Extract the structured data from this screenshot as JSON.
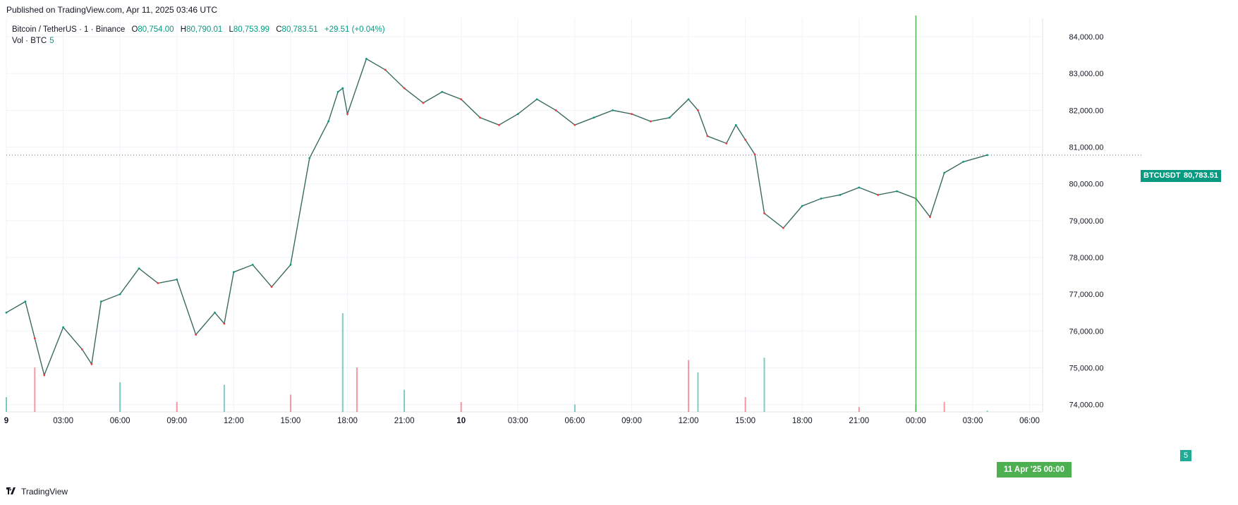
{
  "header": {
    "published": "Published on TradingView.com, Apr 11, 2025 03:46 UTC"
  },
  "legend": {
    "symbol": "Bitcoin / TetherUS · 1 · Binance",
    "open_label": "O",
    "open": "80,754.00",
    "high_label": "H",
    "high": "80,790.01",
    "low_label": "L",
    "low": "80,753.99",
    "close_label": "C",
    "close": "80,783.51",
    "change": "+29.51 (+0.04%)",
    "vol_label": "Vol · BTC",
    "vol_value": "5"
  },
  "price_tags": {
    "symbol": "BTCUSDT",
    "price": "80,783.51"
  },
  "crosshair_label": "11 Apr '25   00:00",
  "footer": {
    "brand": "TradingView",
    "logo_icon": "tradingview-logo-icon"
  },
  "colors": {
    "up": "#089981",
    "down": "#f23645",
    "crosshair": "#4caf50",
    "grid": "#f0f3fa"
  },
  "chart_data": {
    "type": "line",
    "title": "Bitcoin / TetherUS · 1 · Binance",
    "xlabel": "",
    "ylabel": "",
    "x_ticks": [
      "9",
      "03:00",
      "06:00",
      "09:00",
      "12:00",
      "15:00",
      "18:00",
      "21:00",
      "10",
      "03:00",
      "06:00",
      "09:00",
      "12:00",
      "15:00",
      "18:00",
      "21:00",
      "00:00",
      "03:00",
      "06:00"
    ],
    "y_ticks": [
      "74,000.00",
      "75,000.00",
      "76,000.00",
      "77,000.00",
      "78,000.00",
      "79,000.00",
      "80,000.00",
      "81,000.00",
      "82,000.00",
      "83,000.00",
      "84,000.00"
    ],
    "ylim": [
      73800,
      84500
    ],
    "grid": true,
    "last_price": 80783.51,
    "series": [
      {
        "name": "BTCUSDT",
        "x": [
          "9 00:00",
          "01:00",
          "01:30",
          "02:00",
          "03:00",
          "04:00",
          "04:30",
          "05:00",
          "06:00",
          "07:00",
          "08:00",
          "09:00",
          "10:00",
          "11:00",
          "11:30",
          "12:00",
          "13:00",
          "14:00",
          "15:00",
          "16:00",
          "17:00",
          "17:30",
          "17:45",
          "18:00",
          "19:00",
          "20:00",
          "21:00",
          "22:00",
          "23:00",
          "10 00:00",
          "01:00",
          "02:00",
          "03:00",
          "04:00",
          "05:00",
          "06:00",
          "07:00",
          "08:00",
          "09:00",
          "10:00",
          "11:00",
          "12:00",
          "12:30",
          "13:00",
          "14:00",
          "14:30",
          "15:00",
          "15:30",
          "16:00",
          "17:00",
          "18:00",
          "19:00",
          "20:00",
          "21:00",
          "22:00",
          "23:00",
          "11 00:00",
          "00:45",
          "01:30",
          "02:30",
          "03:46"
        ],
        "values": [
          76500,
          76800,
          75800,
          74800,
          76100,
          75500,
          75100,
          76800,
          77000,
          77700,
          77300,
          77400,
          75900,
          76500,
          76200,
          77600,
          77800,
          77200,
          77800,
          80700,
          81700,
          82500,
          82600,
          81900,
          83400,
          83100,
          82600,
          82200,
          82500,
          82300,
          81800,
          81600,
          81900,
          82300,
          82000,
          81600,
          81800,
          82000,
          81900,
          81700,
          81800,
          82300,
          82000,
          81300,
          81100,
          81600,
          81200,
          80800,
          79200,
          78800,
          79400,
          79600,
          79700,
          79900,
          79700,
          79800,
          79600,
          79100,
          80300,
          80600,
          80783
        ]
      },
      {
        "name": "Vol · BTC",
        "x": [
          "9 00:00",
          "01:30",
          "06:00",
          "09:00",
          "11:30",
          "15:00",
          "17:45",
          "18:30",
          "21:00",
          "10 00:00",
          "06:00",
          "12:00",
          "12:30",
          "15:00",
          "16:00",
          "21:00",
          "11 00:00",
          "01:30",
          "03:46"
        ],
        "values": [
          60,
          180,
          120,
          40,
          110,
          70,
          400,
          180,
          90,
          40,
          30,
          210,
          160,
          60,
          220,
          20,
          30,
          40,
          5
        ]
      }
    ]
  }
}
